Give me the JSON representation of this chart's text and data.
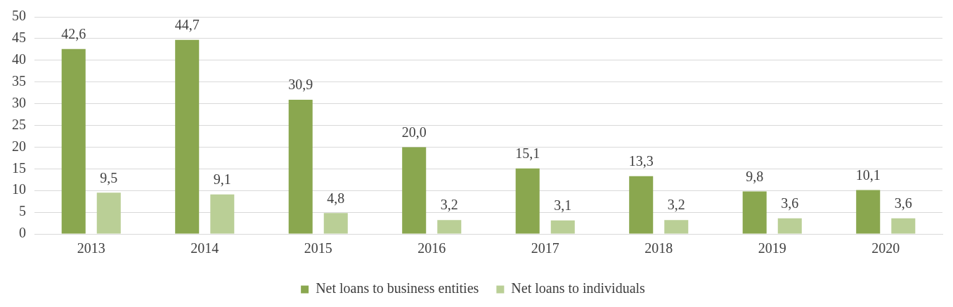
{
  "chart_data": {
    "type": "bar",
    "categories": [
      "2013",
      "2014",
      "2015",
      "2016",
      "2017",
      "2018",
      "2019",
      "2020"
    ],
    "series": [
      {
        "name": "Net loans to business entities",
        "color": "#8aa74f",
        "values": [
          42.6,
          44.7,
          30.9,
          20.0,
          15.1,
          13.3,
          9.8,
          10.1
        ],
        "value_labels": [
          "42,6",
          "44,7",
          "30,9",
          "20,0",
          "15,1",
          "13,3",
          "9,8",
          "10,1"
        ]
      },
      {
        "name": "Net loans to individuals",
        "color": "#bacf96",
        "values": [
          9.5,
          9.1,
          4.8,
          3.2,
          3.1,
          3.2,
          3.6,
          3.6
        ],
        "value_labels": [
          "9,5",
          "9,1",
          "4,8",
          "3,2",
          "3,1",
          "3,2",
          "3,6",
          "3,6"
        ]
      }
    ],
    "ylim": [
      0,
      50
    ],
    "yticks": [
      0,
      5,
      10,
      15,
      20,
      25,
      30,
      35,
      40,
      45,
      50
    ],
    "grid": "y",
    "legend": "bottom"
  }
}
